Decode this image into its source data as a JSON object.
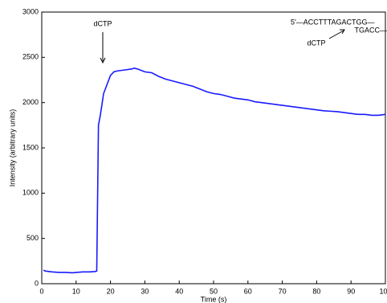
{
  "chart_data": {
    "type": "line",
    "xlabel": "Time (s)",
    "ylabel": "Intensity (arbitrary units)",
    "annotations": {
      "arrow_label": "dCTP",
      "sequence_top": "5'—ACCTTTAGACTGG—",
      "sequence_bottom": "TGACC—",
      "nucleotide": "dCTP"
    },
    "x": [
      0.5,
      1,
      3,
      5,
      7,
      9,
      10,
      12,
      14,
      15.5,
      16,
      16.5,
      17,
      18,
      19,
      20,
      21,
      22,
      24,
      26,
      27,
      28,
      30,
      32,
      34,
      36,
      38,
      40,
      42,
      44,
      46,
      48,
      50,
      52,
      54,
      56,
      58,
      60,
      62,
      64,
      66,
      68,
      70,
      72,
      74,
      76,
      78,
      80,
      82,
      84,
      86,
      88,
      90,
      92,
      94,
      96,
      98,
      100
    ],
    "series": [
      {
        "color": "#1a1aff",
        "values": [
          150,
          140,
          130,
          125,
          125,
          120,
          125,
          130,
          130,
          135,
          140,
          1750,
          1850,
          2100,
          2200,
          2300,
          2340,
          2350,
          2360,
          2370,
          2380,
          2370,
          2340,
          2330,
          2290,
          2260,
          2240,
          2220,
          2200,
          2180,
          2150,
          2120,
          2100,
          2090,
          2070,
          2050,
          2040,
          2030,
          2010,
          2000,
          1990,
          1980,
          1970,
          1960,
          1950,
          1940,
          1930,
          1920,
          1910,
          1905,
          1900,
          1890,
          1880,
          1870,
          1870,
          1860,
          1860,
          1870
        ]
      }
    ],
    "xlim": [
      0,
      100
    ],
    "ylim": [
      0,
      3000
    ],
    "xticks": [
      0,
      10,
      20,
      30,
      40,
      50,
      60,
      70,
      80,
      90,
      100
    ],
    "yticks": [
      0,
      500,
      1000,
      1500,
      2000,
      2500,
      3000
    ]
  }
}
